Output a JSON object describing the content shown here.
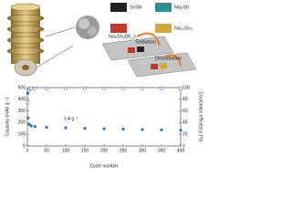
{
  "illustration": {
    "labels": [
      "SnSb",
      "Na₃Sb",
      "NaₓSnᵧSb_z",
      "Na₁₅Sn₄",
      "Sodiation",
      "Desodiation"
    ]
  },
  "chart_data": {
    "type": "scatter",
    "x": [
      1,
      2,
      5,
      10,
      20,
      50,
      100,
      150,
      200,
      250,
      300,
      350,
      400
    ],
    "series": [
      {
        "color": "#2d6fd6",
        "values": [
          450,
          240,
          185,
          172,
          166,
          160,
          155,
          151,
          148,
          145,
          141,
          138,
          135
        ]
      },
      {
        "color": "#ffffff",
        "axis": "y2",
        "values": [
          75,
          95,
          98,
          99,
          99,
          99,
          99,
          99,
          99,
          99,
          99,
          99,
          99
        ]
      }
    ],
    "xlabel": "Cycle number",
    "ylabel": "Capacity (mAh g⁻¹)",
    "y2label": "Coulombic efficiency (%)",
    "annotation": "1 A g⁻¹",
    "xlim": [
      0,
      400
    ],
    "xticks": [
      0,
      50,
      100,
      150,
      200,
      250,
      300,
      350,
      400
    ],
    "ylim": [
      0,
      500
    ],
    "yticks": [
      0,
      100,
      200,
      300,
      400,
      500
    ],
    "y2lim": [
      0,
      100
    ],
    "y2ticks": [
      0,
      20,
      40,
      60,
      80,
      100
    ]
  }
}
